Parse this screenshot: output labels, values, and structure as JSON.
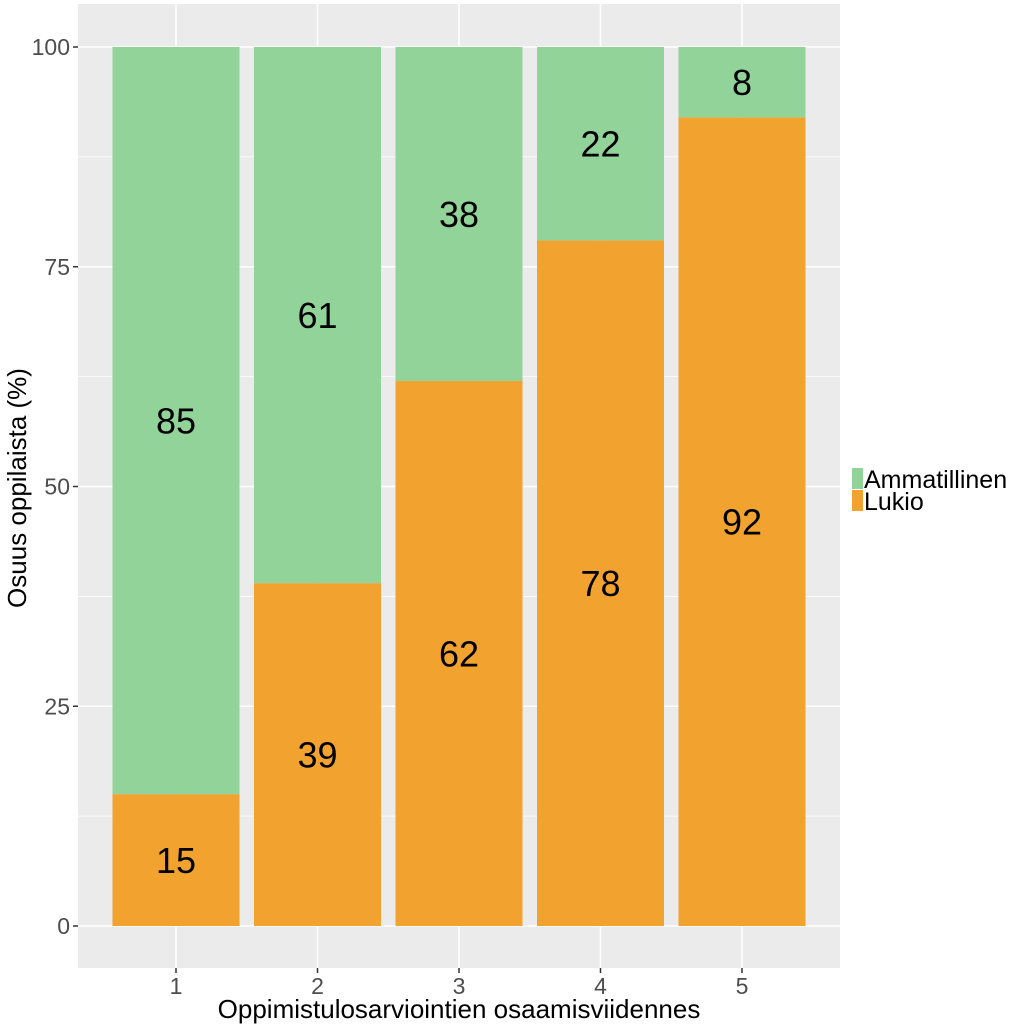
{
  "chart_data": {
    "type": "bar",
    "stacked": true,
    "percent": true,
    "categories": [
      "1",
      "2",
      "3",
      "4",
      "5"
    ],
    "series": [
      {
        "name": "Lukio",
        "color": "#F2A22E",
        "values": [
          15,
          39,
          62,
          78,
          92
        ]
      },
      {
        "name": "Ammatillinen",
        "color": "#92D39A",
        "values": [
          85,
          61,
          38,
          22,
          8
        ]
      }
    ],
    "xlabel": "Oppimistulosarviointien osaamisviidennes",
    "ylabel": "Osuus oppilaista (%)",
    "ylim": [
      0,
      100
    ],
    "yticks": [
      "0",
      "25",
      "50",
      "75",
      "100"
    ],
    "grid": true,
    "legend": {
      "position": "right",
      "items": [
        "Ammatillinen",
        "Lukio"
      ]
    }
  },
  "colors": {
    "panel_background": "#EBEBEB",
    "grid": "#FFFFFF"
  }
}
